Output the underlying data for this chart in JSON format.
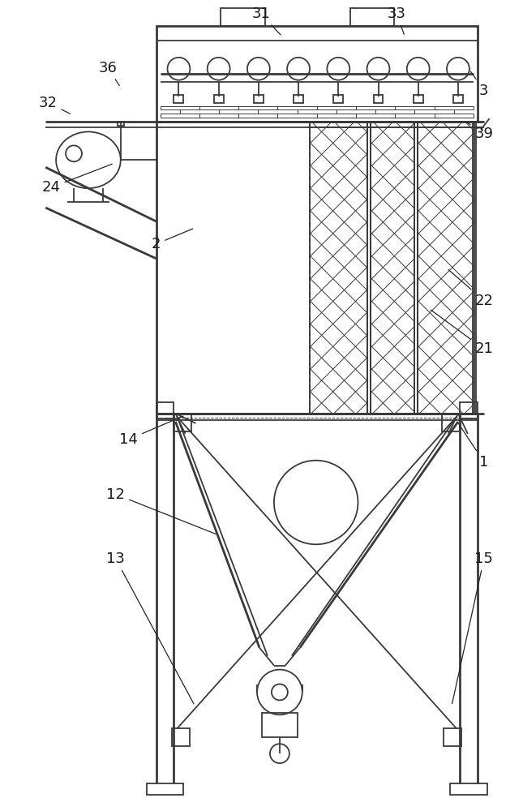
{
  "bg_color": "#ffffff",
  "lc": "#3a3a3a",
  "lw": 1.3,
  "lw2": 2.0,
  "lw3": 0.7,
  "fig_w": 6.45,
  "fig_h": 10.0,
  "dpi": 100
}
